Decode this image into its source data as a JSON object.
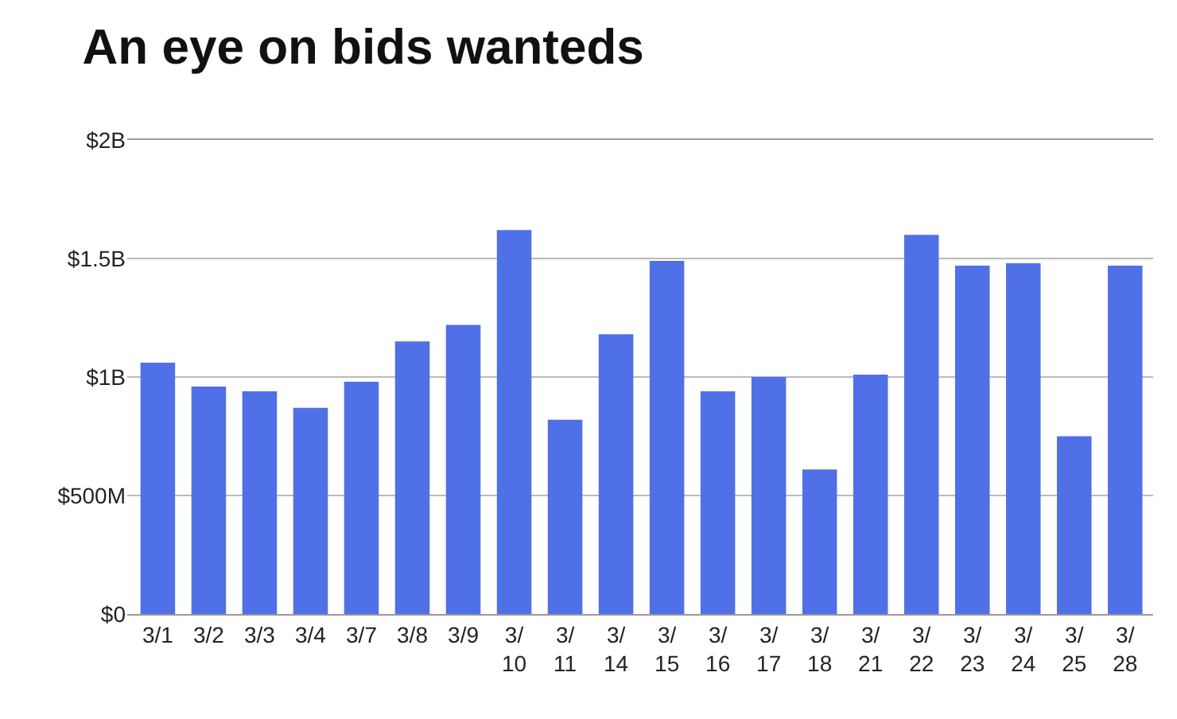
{
  "chart_data": {
    "type": "bar",
    "title": "An eye on bids wanteds",
    "categories": [
      "3/1",
      "3/2",
      "3/3",
      "3/4",
      "3/7",
      "3/8",
      "3/9",
      "3/10",
      "3/11",
      "3/14",
      "3/15",
      "3/16",
      "3/17",
      "3/18",
      "3/21",
      "3/22",
      "3/23",
      "3/24",
      "3/25",
      "3/28"
    ],
    "values": [
      1060000000,
      960000000,
      940000000,
      870000000,
      980000000,
      1150000000,
      1220000000,
      1620000000,
      820000000,
      1180000000,
      1490000000,
      940000000,
      1000000000,
      610000000,
      1010000000,
      1600000000,
      1470000000,
      1480000000,
      750000000,
      1470000000
    ],
    "color": "#5070e8",
    "ylim": [
      0,
      2000000000
    ],
    "yticks": [
      {
        "value": 0,
        "label": "$0"
      },
      {
        "value": 500000000,
        "label": "$500M"
      },
      {
        "value": 1000000000,
        "label": "$1B"
      },
      {
        "value": 1500000000,
        "label": "$1.5B"
      },
      {
        "value": 2000000000,
        "label": "$2B"
      }
    ],
    "grid": "y"
  }
}
